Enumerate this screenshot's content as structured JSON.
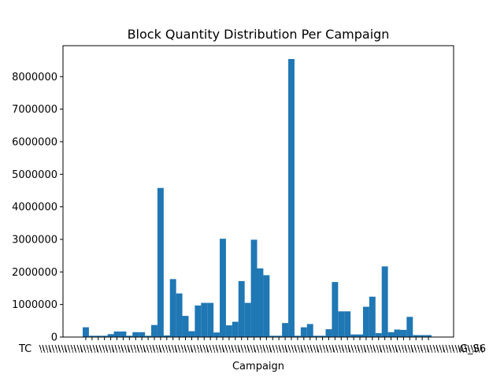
{
  "chart_data": {
    "type": "bar",
    "title": "Block Quantity Distribution Per Campaign",
    "xlabel": "Campaign",
    "ylabel": "",
    "ylim": [
      0,
      8950000
    ],
    "yticks": [
      0,
      1000000,
      2000000,
      3000000,
      4000000,
      5000000,
      6000000,
      7000000,
      8000000
    ],
    "ytick_labels": [
      "0",
      "1000000",
      "2000000",
      "3000000",
      "4000000",
      "5000000",
      "6000000",
      "7000000",
      "8000000"
    ],
    "bar_color": "#1f77b4",
    "x_tick_left_label": "TC",
    "x_tick_right_label": "G_S6",
    "values": [
      300000,
      40000,
      40000,
      40000,
      90000,
      170000,
      170000,
      40000,
      150000,
      150000,
      40000,
      370000,
      4580000,
      50000,
      1780000,
      1340000,
      650000,
      180000,
      970000,
      1050000,
      1050000,
      140000,
      3020000,
      360000,
      470000,
      1720000,
      1050000,
      2990000,
      2110000,
      1900000,
      40000,
      40000,
      430000,
      8540000,
      40000,
      300000,
      400000,
      40000,
      40000,
      240000,
      1690000,
      790000,
      790000,
      80000,
      80000,
      930000,
      1240000,
      120000,
      2170000,
      150000,
      230000,
      220000,
      620000,
      60000,
      60000,
      60000
    ]
  }
}
